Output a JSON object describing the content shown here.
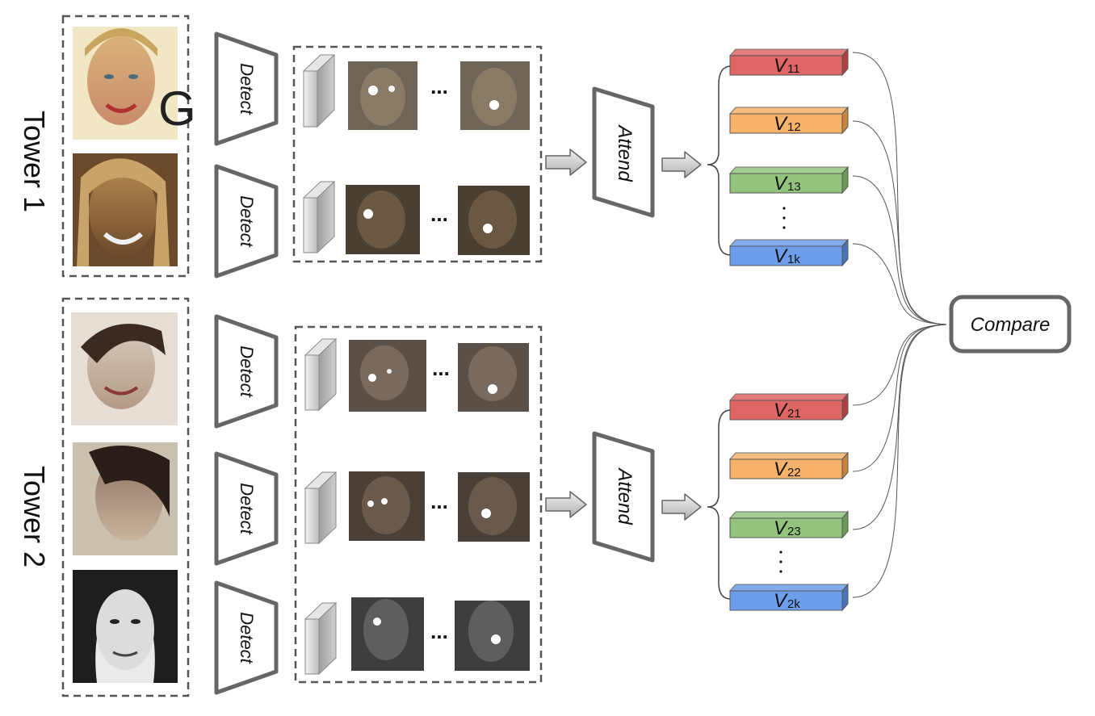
{
  "towers": [
    {
      "label": "Tower 1",
      "rows": [
        {
          "detect_label": "Detect",
          "ellipsis": "..."
        },
        {
          "detect_label": "Detect",
          "ellipsis": "..."
        }
      ],
      "attend_label": "Attend",
      "vectors": [
        {
          "name": "V",
          "sub": "11",
          "color": "#e06666"
        },
        {
          "name": "V",
          "sub": "12",
          "color": "#f6b26b"
        },
        {
          "name": "V",
          "sub": "13",
          "color": "#93c47d"
        },
        {
          "name": "V",
          "sub": "1k",
          "color": "#6d9eeb"
        }
      ],
      "vdots": ".\n.\n."
    },
    {
      "label": "Tower 2",
      "rows": [
        {
          "detect_label": "Detect",
          "ellipsis": "..."
        },
        {
          "detect_label": "Detect",
          "ellipsis": "..."
        },
        {
          "detect_label": "Detect",
          "ellipsis": "..."
        }
      ],
      "attend_label": "Attend",
      "vectors": [
        {
          "name": "V",
          "sub": "21",
          "color": "#e06666"
        },
        {
          "name": "V",
          "sub": "22",
          "color": "#f6b26b"
        },
        {
          "name": "V",
          "sub": "23",
          "color": "#93c47d"
        },
        {
          "name": "V",
          "sub": "2k",
          "color": "#6d9eeb"
        }
      ],
      "vdots": ".\n.\n."
    }
  ],
  "compare_label": "Compare"
}
